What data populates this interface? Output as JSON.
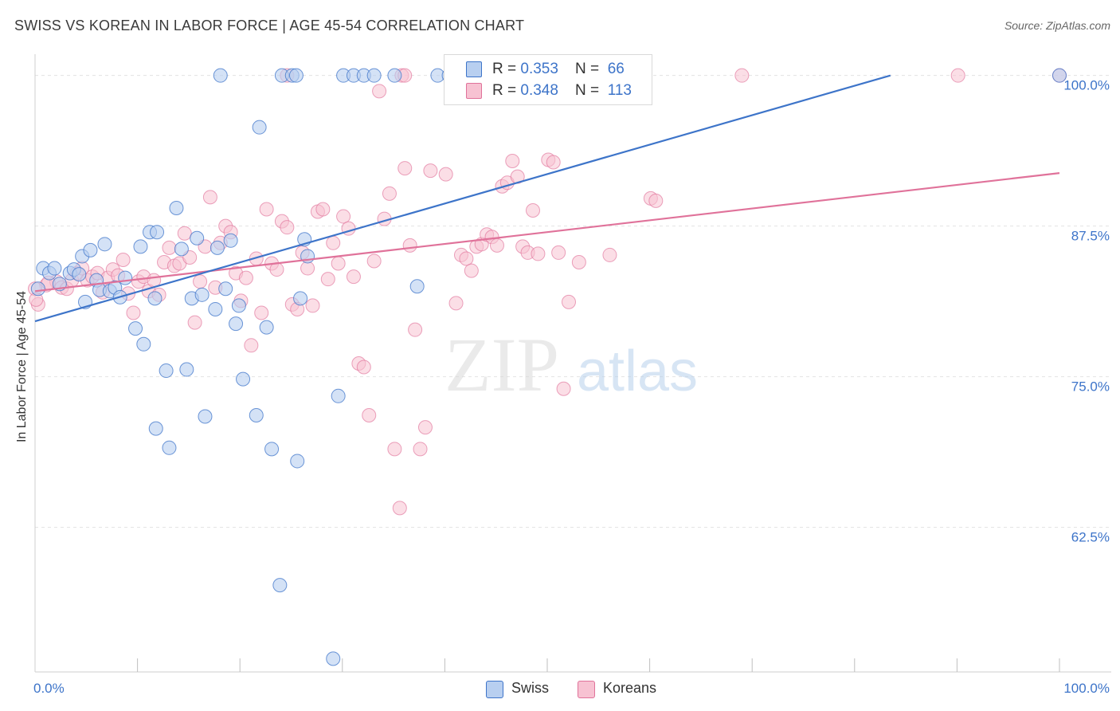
{
  "header": {
    "title": "SWISS VS KOREAN IN LABOR FORCE | AGE 45-54 CORRELATION CHART",
    "source": "Source: ZipAtlas.com"
  },
  "watermark": {
    "zip": "ZIP",
    "atlas": "atlas"
  },
  "legend": {
    "swiss": {
      "r_label": "R = ",
      "r_value": "0.353",
      "n_label": "N = ",
      "n_value": "66"
    },
    "koreans": {
      "r_label": "R = ",
      "r_value": "0.348",
      "n_label": "N = ",
      "n_value": "113"
    }
  },
  "bottom_legend": {
    "swiss": "Swiss",
    "koreans": "Koreans"
  },
  "chart_data": {
    "type": "scatter",
    "xlabel": "",
    "ylabel": "In Labor Force | Age 45-54",
    "xlim": [
      0,
      100
    ],
    "ylim": [
      50.5,
      101.5
    ],
    "x_tick_labels": [
      "0.0%",
      "100.0%"
    ],
    "y_ticks": [
      62.5,
      75.0,
      87.5,
      100.0
    ],
    "y_tick_labels": [
      "62.5%",
      "75.0%",
      "87.5%",
      "100.0%"
    ],
    "grid": true,
    "colors": {
      "swiss": "#3d74c9",
      "koreans": "#e0729a",
      "swiss_fill": "#b8cff0",
      "koreans_fill": "#f7c2d2",
      "tick_label": "#3d74c9"
    },
    "series": [
      {
        "name": "Swiss",
        "trend": {
          "x": [
            0,
            83.5
          ],
          "y": [
            79.6,
            100.0
          ]
        },
        "points": [
          [
            0.3,
            82.3
          ],
          [
            0.8,
            84.0
          ],
          [
            1.4,
            83.6
          ],
          [
            1.9,
            84.0
          ],
          [
            2.4,
            82.7
          ],
          [
            3.4,
            83.6
          ],
          [
            3.8,
            83.9
          ],
          [
            4.3,
            83.5
          ],
          [
            4.9,
            81.2
          ],
          [
            4.6,
            85.0
          ],
          [
            5.4,
            85.5
          ],
          [
            6.0,
            83.0
          ],
          [
            6.3,
            82.2
          ],
          [
            6.8,
            86.0
          ],
          [
            7.3,
            82.1
          ],
          [
            7.8,
            82.4
          ],
          [
            8.3,
            81.6
          ],
          [
            8.8,
            83.2
          ],
          [
            9.8,
            79.0
          ],
          [
            10.3,
            85.8
          ],
          [
            10.6,
            77.7
          ],
          [
            11.2,
            87.0
          ],
          [
            11.7,
            81.5
          ],
          [
            11.9,
            87.0
          ],
          [
            12.8,
            75.5
          ],
          [
            13.8,
            89.0
          ],
          [
            14.3,
            85.6
          ],
          [
            14.8,
            75.6
          ],
          [
            15.3,
            81.5
          ],
          [
            15.8,
            86.5
          ],
          [
            16.3,
            81.8
          ],
          [
            16.6,
            71.7
          ],
          [
            17.6,
            80.6
          ],
          [
            17.8,
            85.7
          ],
          [
            18.6,
            82.3
          ],
          [
            19.1,
            86.3
          ],
          [
            19.6,
            79.4
          ],
          [
            19.9,
            80.9
          ],
          [
            20.3,
            74.8
          ],
          [
            21.6,
            71.8
          ],
          [
            21.9,
            95.7
          ],
          [
            22.6,
            79.1
          ],
          [
            23.1,
            69.0
          ],
          [
            24.1,
            100.0
          ],
          [
            25.1,
            100.0
          ],
          [
            25.5,
            100.0
          ],
          [
            25.6,
            68.0
          ],
          [
            25.9,
            81.5
          ],
          [
            26.3,
            86.4
          ],
          [
            26.6,
            85.0
          ],
          [
            29.6,
            73.4
          ],
          [
            30.1,
            100.0
          ],
          [
            31.1,
            100.0
          ],
          [
            32.1,
            100.0
          ],
          [
            33.1,
            100.0
          ],
          [
            35.1,
            100.0
          ],
          [
            37.3,
            82.5
          ],
          [
            39.3,
            100.0
          ],
          [
            40.4,
            100.0
          ],
          [
            50.2,
            100.0
          ],
          [
            100.0,
            100.0
          ],
          [
            11.8,
            70.7
          ],
          [
            13.1,
            69.1
          ],
          [
            23.9,
            57.7
          ],
          [
            29.1,
            51.6
          ],
          [
            18.1,
            100.0
          ]
        ]
      },
      {
        "name": "Koreans",
        "trend": {
          "x": [
            0,
            100
          ],
          "y": [
            82.1,
            91.9
          ]
        },
        "points": [
          [
            0.3,
            81.0
          ],
          [
            1.1,
            82.6
          ],
          [
            2.1,
            82.9
          ],
          [
            2.6,
            82.4
          ],
          [
            3.1,
            82.3
          ],
          [
            3.6,
            83.0
          ],
          [
            4.1,
            83.6
          ],
          [
            4.6,
            84.0
          ],
          [
            5.1,
            83.0
          ],
          [
            5.6,
            83.3
          ],
          [
            6.1,
            83.6
          ],
          [
            6.6,
            82.0
          ],
          [
            7.1,
            83.2
          ],
          [
            7.6,
            83.9
          ],
          [
            8.1,
            83.4
          ],
          [
            8.6,
            84.7
          ],
          [
            9.1,
            81.9
          ],
          [
            9.6,
            80.3
          ],
          [
            10.1,
            82.9
          ],
          [
            10.6,
            83.3
          ],
          [
            11.1,
            82.1
          ],
          [
            11.6,
            83.0
          ],
          [
            12.1,
            81.8
          ],
          [
            12.6,
            84.5
          ],
          [
            13.1,
            85.7
          ],
          [
            13.6,
            84.2
          ],
          [
            14.1,
            84.4
          ],
          [
            14.6,
            86.9
          ],
          [
            15.1,
            84.9
          ],
          [
            15.6,
            79.5
          ],
          [
            16.1,
            82.9
          ],
          [
            16.6,
            85.8
          ],
          [
            17.1,
            89.9
          ],
          [
            17.6,
            82.4
          ],
          [
            18.1,
            86.1
          ],
          [
            18.6,
            87.5
          ],
          [
            19.1,
            87.0
          ],
          [
            19.6,
            83.6
          ],
          [
            20.1,
            81.3
          ],
          [
            20.6,
            83.2
          ],
          [
            21.1,
            77.6
          ],
          [
            21.6,
            84.8
          ],
          [
            22.1,
            80.3
          ],
          [
            22.6,
            88.9
          ],
          [
            23.1,
            84.4
          ],
          [
            23.6,
            83.9
          ],
          [
            24.1,
            87.9
          ],
          [
            24.6,
            87.4
          ],
          [
            25.1,
            81.0
          ],
          [
            25.6,
            80.6
          ],
          [
            26.1,
            85.3
          ],
          [
            26.6,
            84.0
          ],
          [
            27.1,
            80.9
          ],
          [
            27.6,
            88.7
          ],
          [
            28.1,
            88.9
          ],
          [
            28.6,
            83.1
          ],
          [
            29.1,
            86.1
          ],
          [
            29.6,
            84.4
          ],
          [
            30.1,
            88.3
          ],
          [
            30.6,
            87.3
          ],
          [
            31.1,
            83.3
          ],
          [
            31.6,
            76.1
          ],
          [
            32.1,
            75.8
          ],
          [
            32.6,
            71.8
          ],
          [
            33.1,
            84.6
          ],
          [
            33.6,
            98.7
          ],
          [
            34.1,
            88.1
          ],
          [
            34.6,
            90.2
          ],
          [
            35.1,
            69.0
          ],
          [
            35.6,
            64.1
          ],
          [
            36.1,
            92.3
          ],
          [
            36.6,
            85.9
          ],
          [
            37.1,
            78.9
          ],
          [
            37.6,
            69.0
          ],
          [
            38.1,
            70.8
          ],
          [
            38.6,
            92.1
          ],
          [
            40.1,
            91.8
          ],
          [
            41.1,
            81.1
          ],
          [
            41.6,
            85.1
          ],
          [
            42.1,
            84.8
          ],
          [
            42.6,
            83.8
          ],
          [
            43.1,
            85.8
          ],
          [
            43.6,
            86.0
          ],
          [
            44.1,
            86.8
          ],
          [
            44.6,
            86.6
          ],
          [
            45.1,
            85.9
          ],
          [
            45.6,
            90.8
          ],
          [
            46.1,
            91.1
          ],
          [
            46.6,
            92.9
          ],
          [
            47.1,
            91.6
          ],
          [
            47.6,
            85.8
          ],
          [
            48.1,
            85.3
          ],
          [
            48.6,
            88.8
          ],
          [
            49.1,
            85.2
          ],
          [
            50.1,
            93.0
          ],
          [
            50.6,
            92.8
          ],
          [
            51.1,
            85.3
          ],
          [
            51.6,
            74.0
          ],
          [
            52.1,
            81.2
          ],
          [
            53.1,
            84.5
          ],
          [
            56.1,
            85.1
          ],
          [
            60.1,
            89.8
          ],
          [
            60.6,
            89.6
          ],
          [
            69.0,
            100.0
          ],
          [
            90.1,
            100.0
          ],
          [
            100.0,
            100.0
          ],
          [
            35.8,
            100.0
          ],
          [
            36.1,
            100.0
          ],
          [
            46.1,
            100.0
          ],
          [
            24.6,
            100.0
          ],
          [
            0.0,
            82.3
          ],
          [
            0.1,
            81.4
          ],
          [
            1.3,
            82.8
          ]
        ]
      }
    ]
  }
}
